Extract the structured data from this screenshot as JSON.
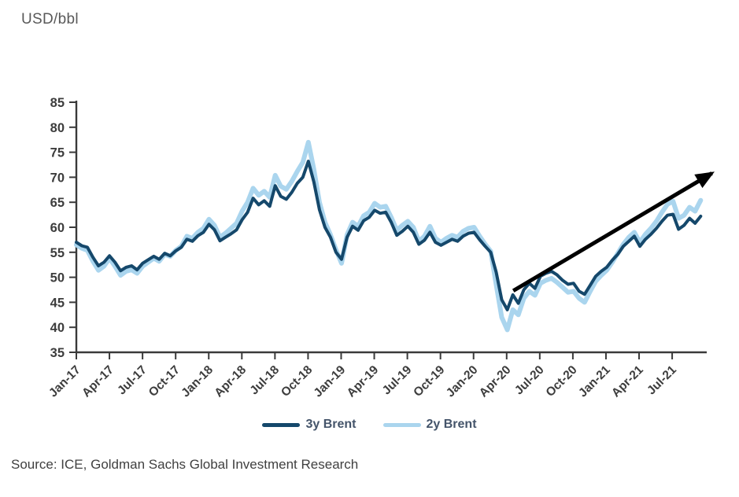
{
  "title": "USD/bbl",
  "source_note": "Source: ICE, Goldman Sachs Global Investment Research",
  "colors": {
    "brent_3y": "#15486b",
    "brent_2y": "#aad5ee",
    "axis": "#3a3a3a",
    "tick_text": "#3d3d3d",
    "title_text": "#595959",
    "source_text": "#404040",
    "legend_text": "#44546a",
    "arrow": "#000000",
    "background": "#ffffff"
  },
  "legend": {
    "position": "bottom-center",
    "items": [
      {
        "label": "3y Brent",
        "color_key": "brent_3y"
      },
      {
        "label": "2y Brent",
        "color_key": "brent_2y"
      }
    ]
  },
  "chart_data": {
    "type": "line",
    "title": "USD/bbl",
    "ylabel": "USD/bbl",
    "xlabel": "",
    "grid": false,
    "legend_position": "bottom-center",
    "ylim": [
      35,
      85
    ],
    "y_ticks": [
      85,
      80,
      75,
      70,
      65,
      60,
      55,
      50,
      45,
      40,
      35
    ],
    "x_ticklabels": [
      "Jan-17",
      "Apr-17",
      "Jul-17",
      "Oct-17",
      "Jan-18",
      "Apr-18",
      "Jul-18",
      "Oct-18",
      "Jan-19",
      "Apr-19",
      "Jul-19",
      "Oct-19",
      "Jan-20",
      "Apr-20",
      "Jul-20",
      "Oct-20",
      "Jan-21",
      "Apr-21",
      "Jul-21"
    ],
    "x_start_month": "Jan-2017",
    "x_end_month": "Sep-2021",
    "x_points_per_month": 2,
    "series": [
      {
        "name": "3y Brent",
        "color": "#15486b",
        "values": [
          57.0,
          56.3,
          56.0,
          54.0,
          52.3,
          53.0,
          54.3,
          53.0,
          51.3,
          52.0,
          52.3,
          51.5,
          52.8,
          53.5,
          54.2,
          53.6,
          54.8,
          54.3,
          55.3,
          56.0,
          57.6,
          57.2,
          58.3,
          59.0,
          60.6,
          59.5,
          57.3,
          58.0,
          58.7,
          59.5,
          61.5,
          63.0,
          65.8,
          64.5,
          65.3,
          64.2,
          68.3,
          66.2,
          65.6,
          67.0,
          68.8,
          70.0,
          73.2,
          69.0,
          63.5,
          60.0,
          58.0,
          55.0,
          53.6,
          58.0,
          60.2,
          59.4,
          61.3,
          62.0,
          63.4,
          62.8,
          63.0,
          61.0,
          58.4,
          59.2,
          60.2,
          59.0,
          56.6,
          57.4,
          59.0,
          57.0,
          56.4,
          57.0,
          57.6,
          57.2,
          58.2,
          58.8,
          59.0,
          57.5,
          56.2,
          55.0,
          51.0,
          45.5,
          43.5,
          46.5,
          44.8,
          47.5,
          48.8,
          47.8,
          50.2,
          50.8,
          51.2,
          50.5,
          49.4,
          48.6,
          48.8,
          47.2,
          46.6,
          48.4,
          50.2,
          51.2,
          52.0,
          53.4,
          54.6,
          56.2,
          57.2,
          58.2,
          56.2,
          57.6,
          58.6,
          59.8,
          61.2,
          62.4,
          62.6,
          59.6,
          60.4,
          61.8,
          60.8,
          62.2
        ]
      },
      {
        "name": "2y Brent",
        "color": "#aad5ee",
        "values": [
          56.5,
          55.8,
          55.4,
          53.2,
          51.4,
          52.2,
          53.8,
          52.2,
          50.4,
          51.2,
          51.5,
          50.8,
          52.2,
          53.0,
          53.8,
          53.2,
          54.6,
          54.2,
          55.4,
          56.2,
          58.2,
          57.8,
          59.0,
          59.8,
          61.6,
          60.4,
          58.0,
          58.8,
          59.8,
          60.8,
          63.2,
          65.0,
          67.8,
          66.4,
          67.2,
          66.0,
          70.4,
          68.2,
          67.6,
          69.2,
          71.2,
          73.0,
          77.0,
          71.5,
          65.0,
          61.0,
          58.5,
          55.5,
          52.8,
          58.5,
          61.0,
          60.2,
          62.3,
          63.0,
          64.8,
          64.0,
          64.2,
          62.0,
          59.4,
          60.4,
          61.2,
          60.0,
          57.2,
          58.2,
          60.2,
          57.8,
          57.0,
          57.8,
          58.4,
          58.0,
          59.2,
          59.8,
          60.0,
          58.2,
          56.6,
          55.2,
          48.5,
          42.0,
          39.5,
          43.5,
          42.5,
          45.8,
          47.2,
          46.4,
          48.8,
          49.4,
          49.8,
          49.0,
          48.0,
          47.0,
          47.2,
          45.8,
          45.0,
          47.2,
          49.2,
          50.4,
          51.4,
          53.0,
          54.8,
          56.6,
          58.0,
          59.0,
          57.0,
          58.6,
          59.8,
          61.2,
          63.0,
          64.6,
          65.2,
          61.8,
          62.4,
          64.0,
          63.2,
          65.4
        ]
      }
    ],
    "annotation_arrow": {
      "description": "black upward trend arrow",
      "from": {
        "month_offset": 39.6,
        "value": 47.3
      },
      "to": {
        "month_offset": 57.6,
        "value": 70.8
      }
    }
  }
}
